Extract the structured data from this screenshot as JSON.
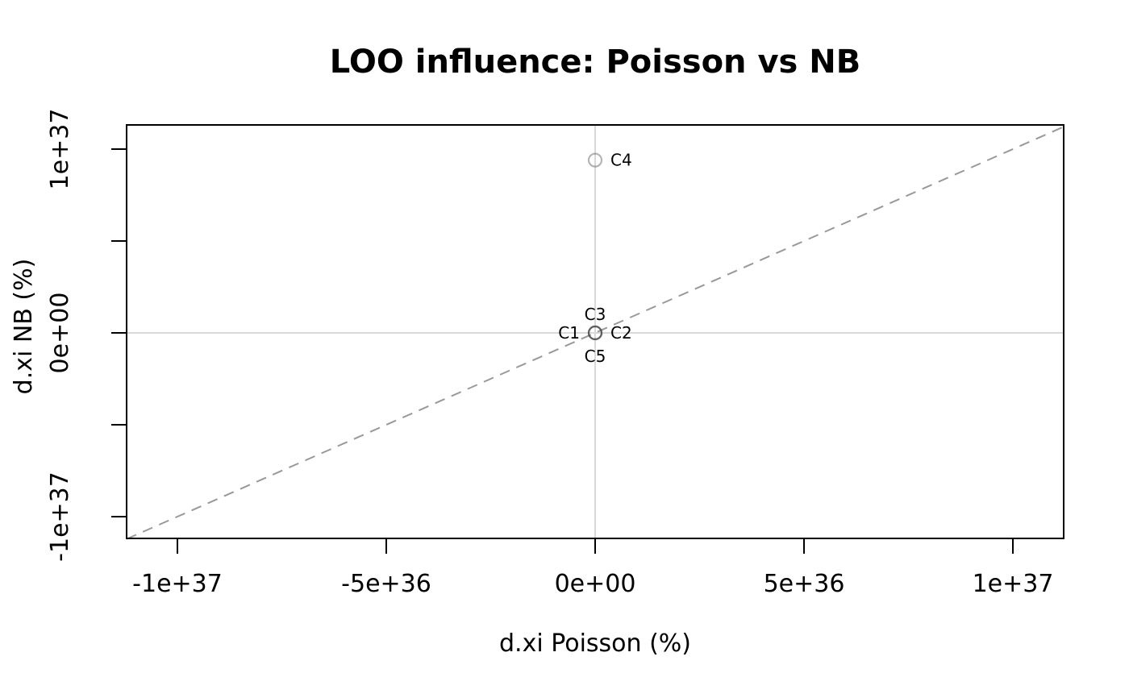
{
  "page": {
    "background": "#ffffff"
  },
  "chart_data": {
    "type": "scatter",
    "title": "LOO influence: Poisson vs NB",
    "xlabel": "d.xi Poisson (%)",
    "ylabel": "d.xi NB (%)",
    "xlim": [
      -1.12e+37,
      1.12e+37
    ],
    "ylim": [
      -1.13e+37,
      1.13e+37
    ],
    "x_ticks": {
      "values": [
        -1e+37,
        -5e+36,
        0,
        5e+36,
        1e+37
      ],
      "labels": [
        "-1e+37",
        "-5e+36",
        "0e+00",
        "5e+36",
        "1e+37"
      ]
    },
    "y_ticks": {
      "values": [
        -1e+37,
        -5e+36,
        0,
        5e+36,
        1e+37
      ],
      "labels": [
        "-1e+37",
        "",
        "0e+00",
        "",
        "1e+37"
      ]
    },
    "points": [
      {
        "label": "C1",
        "x": 0,
        "y": 0,
        "label_pos": "left"
      },
      {
        "label": "C2",
        "x": 0,
        "y": 0,
        "label_pos": "right"
      },
      {
        "label": "C3",
        "x": 0,
        "y": 0,
        "label_pos": "above"
      },
      {
        "label": "C4",
        "x": 0,
        "y": 9.4e+36,
        "label_pos": "right"
      },
      {
        "label": "C5",
        "x": 0,
        "y": 0,
        "label_pos": "below"
      }
    ],
    "point_style": {
      "shape": "open-circle",
      "stroke": "#4d4d4d",
      "stroke_opacity": 0.42
    },
    "reference_line": {
      "type": "identity y = x",
      "style": "dashed",
      "color": "#999999"
    },
    "zero_lines": {
      "shown": true,
      "color": "#d9d9d9"
    },
    "axis_color": "#000000",
    "grid": "off",
    "legend_position": "none"
  }
}
